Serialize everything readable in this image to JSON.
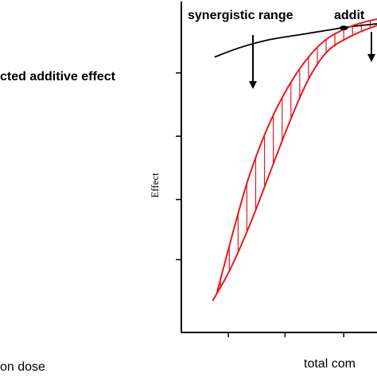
{
  "labels": {
    "synergistic_range": "synergistic range",
    "additive": "addit",
    "expected_additive_effect": "cted additive effect",
    "ylabel": "Effect",
    "left_xlabel": "on dose",
    "right_xlabel": "total com"
  },
  "colors": {
    "axis": "#000000",
    "expected_curve": "#000000",
    "observed_region": "#e8191c"
  },
  "chart_data": {
    "type": "line",
    "title": "",
    "xlabel": "total com",
    "ylabel": "Effect",
    "grid": false,
    "legend": "none",
    "xlim": [
      0,
      1
    ],
    "ylim": [
      0,
      1
    ],
    "series": [
      {
        "values": [
          [
            0.17,
            0.87
          ],
          [
            0.3,
            0.9
          ],
          [
            0.45,
            0.925
          ],
          [
            0.6,
            0.94
          ],
          [
            0.75,
            0.955
          ],
          [
            0.85,
            0.965
          ],
          [
            1.0,
            0.975
          ]
        ]
      },
      {
        "values": [
          [
            0.18,
            0.12
          ],
          [
            0.27,
            0.33
          ],
          [
            0.35,
            0.5
          ],
          [
            0.45,
            0.66
          ],
          [
            0.55,
            0.78
          ],
          [
            0.65,
            0.87
          ],
          [
            0.75,
            0.93
          ],
          [
            0.88,
            0.97
          ],
          [
            1.0,
            0.99
          ]
        ]
      },
      {
        "values": [
          [
            0.16,
            0.1
          ],
          [
            0.25,
            0.2
          ],
          [
            0.35,
            0.34
          ],
          [
            0.45,
            0.5
          ],
          [
            0.55,
            0.66
          ],
          [
            0.65,
            0.8
          ],
          [
            0.75,
            0.89
          ],
          [
            0.88,
            0.94
          ],
          [
            1.0,
            0.97
          ]
        ]
      }
    ],
    "annotations": [
      "synergistic range",
      "addit"
    ]
  }
}
